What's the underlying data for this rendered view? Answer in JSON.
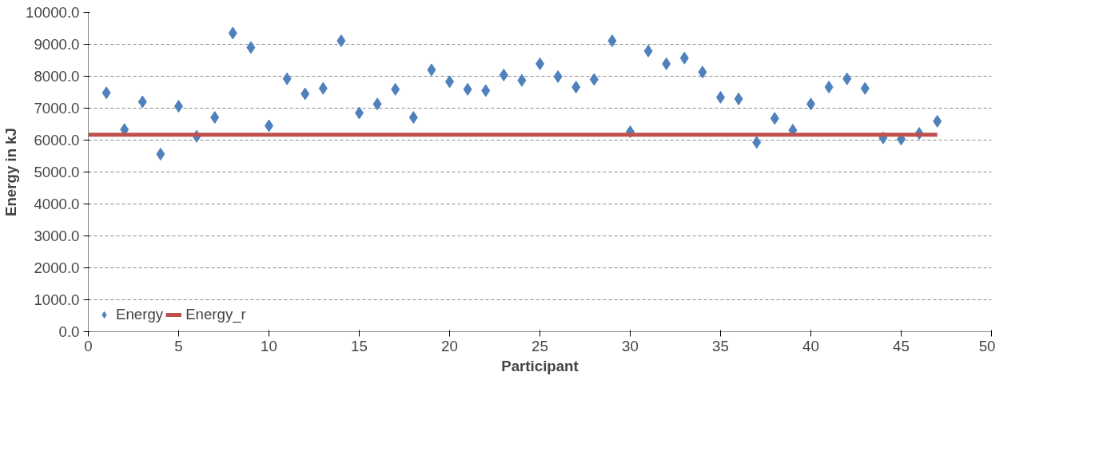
{
  "chart_data": {
    "type": "scatter",
    "xlabel": "Participant",
    "ylabel": "Energy in kJ",
    "xlim": [
      0,
      50
    ],
    "xticks": [
      0,
      5,
      10,
      15,
      20,
      25,
      30,
      35,
      40,
      45,
      50
    ],
    "ylim": [
      0,
      10000
    ],
    "yticks": [
      {
        "value": 0,
        "label": "0.0"
      },
      {
        "value": 1000,
        "label": "1000.0"
      },
      {
        "value": 2000,
        "label": "2000.0"
      },
      {
        "value": 3000,
        "label": "3000.0"
      },
      {
        "value": 4000,
        "label": "4000.0"
      },
      {
        "value": 5000,
        "label": "5000.0"
      },
      {
        "value": 6000,
        "label": "6000.0"
      },
      {
        "value": 7000,
        "label": "7000.0"
      },
      {
        "value": 8000,
        "label": "8000.0"
      },
      {
        "value": 9000,
        "label": "9000.0"
      },
      {
        "value": 10000,
        "label": "10000.0"
      }
    ],
    "grid": "y",
    "legend": "bottom left",
    "series": [
      {
        "name": "Energy",
        "marker": "diamond",
        "color": "#4f81bd",
        "x": [
          1,
          2,
          3,
          4,
          5,
          6,
          7,
          8,
          9,
          10,
          11,
          12,
          13,
          14,
          15,
          16,
          17,
          18,
          19,
          20,
          21,
          22,
          23,
          24,
          25,
          26,
          27,
          28,
          29,
          30,
          31,
          32,
          33,
          34,
          35,
          36,
          37,
          38,
          39,
          40,
          41,
          42,
          43,
          44,
          45,
          46,
          47
        ],
        "values": [
          7480,
          6330,
          7200,
          5560,
          7060,
          6120,
          6710,
          9350,
          8900,
          6450,
          7920,
          7450,
          7620,
          9110,
          6850,
          7130,
          7590,
          6710,
          8200,
          7830,
          7590,
          7550,
          8040,
          7870,
          8390,
          7990,
          7660,
          7900,
          9110,
          6260,
          8790,
          8390,
          8570,
          8130,
          7340,
          7290,
          5930,
          6680,
          6310,
          7130,
          7660,
          7920,
          7620,
          6070,
          6030,
          6210,
          6590
        ]
      },
      {
        "name": "Energy_r",
        "type": "line",
        "color": "#c0504d",
        "line_style": "solid",
        "x": [
          0,
          47
        ],
        "values": [
          6170,
          6170
        ]
      }
    ]
  }
}
